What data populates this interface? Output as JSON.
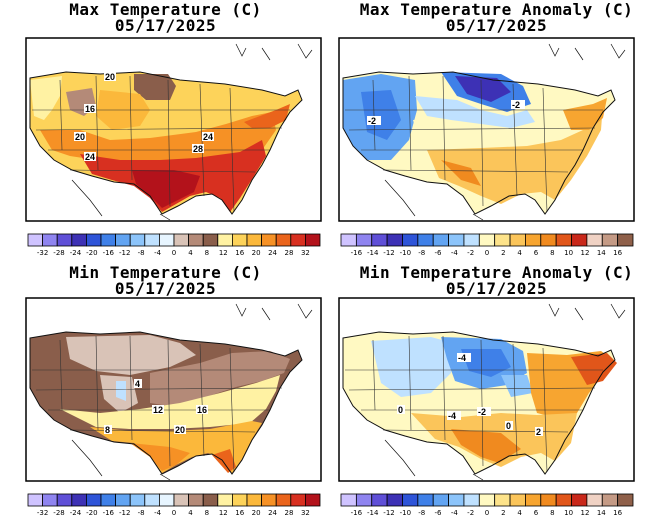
{
  "panels": [
    {
      "id": "max",
      "title": "Max Temperature (C)",
      "date": "05/17/2025",
      "scale": [
        "-32",
        "-28",
        "-24",
        "-20",
        "-16",
        "-12",
        "-8",
        "-4",
        "0",
        "4",
        "8",
        "12",
        "16",
        "20",
        "24",
        "28",
        "32"
      ],
      "contour_labels": [
        "20",
        "16",
        "20",
        "24",
        "24",
        "28"
      ],
      "colors": [
        "#cfc3ff",
        "#8f84f0",
        "#5f4fd7",
        "#3d31b5",
        "#2e54d8",
        "#3f80e8",
        "#62a4f2",
        "#8cc4fa",
        "#bfe1ff",
        "#e7f5ff",
        "#d9c3b7",
        "#b48a78",
        "#8a5e4b",
        "#fff2a3",
        "#fdd35a",
        "#fbb83b",
        "#f69125",
        "#ea641b",
        "#d83020",
        "#b3121b"
      ]
    },
    {
      "id": "max_anom",
      "title": "Max Temperature Anomaly (C)",
      "date": "05/17/2025",
      "scale": [
        "-16",
        "-14",
        "-12",
        "-10",
        "-8",
        "-6",
        "-4",
        "-2",
        "0",
        "2",
        "4",
        "6",
        "8",
        "10",
        "12",
        "14",
        "16"
      ],
      "contour_labels": [
        "-2",
        "-2"
      ],
      "colors": [
        "#cfc3ff",
        "#8f84f0",
        "#5f4fd7",
        "#3d31b5",
        "#2e54d8",
        "#3f80e8",
        "#62a4f2",
        "#8cc4fa",
        "#bfe1ff",
        "#fff9c2",
        "#fde38a",
        "#fbc55a",
        "#f7a530",
        "#f08a1f",
        "#e1561a",
        "#c9281a",
        "#f0d2c4",
        "#c49a85",
        "#8f604a"
      ]
    },
    {
      "id": "min",
      "title": "Min Temperature (C)",
      "date": "05/17/2025",
      "scale": [
        "-32",
        "-28",
        "-24",
        "-20",
        "-16",
        "-12",
        "-8",
        "-4",
        "0",
        "4",
        "8",
        "12",
        "16",
        "20",
        "24",
        "28",
        "32"
      ],
      "contour_labels": [
        "4",
        "12",
        "16",
        "20",
        "8"
      ],
      "colors": [
        "#cfc3ff",
        "#8f84f0",
        "#5f4fd7",
        "#3d31b5",
        "#2e54d8",
        "#3f80e8",
        "#62a4f2",
        "#8cc4fa",
        "#bfe1ff",
        "#e7f5ff",
        "#d9c3b7",
        "#b48a78",
        "#8a5e4b",
        "#fff2a3",
        "#fdd35a",
        "#fbb83b",
        "#f69125",
        "#ea641b",
        "#d83020",
        "#b3121b"
      ]
    },
    {
      "id": "min_anom",
      "title": "Min Temperature Anomaly (C)",
      "date": "05/17/2025",
      "scale": [
        "-16",
        "-14",
        "-12",
        "-10",
        "-8",
        "-6",
        "-4",
        "-2",
        "0",
        "2",
        "4",
        "6",
        "8",
        "10",
        "12",
        "14",
        "16"
      ],
      "contour_labels": [
        "-4",
        "0",
        "-2",
        "-4",
        "0",
        "2"
      ],
      "colors": [
        "#cfc3ff",
        "#8f84f0",
        "#5f4fd7",
        "#3d31b5",
        "#2e54d8",
        "#3f80e8",
        "#62a4f2",
        "#8cc4fa",
        "#bfe1ff",
        "#fff9c2",
        "#fde38a",
        "#fbc55a",
        "#f7a530",
        "#f08a1f",
        "#e1561a",
        "#c9281a",
        "#f0d2c4",
        "#c49a85",
        "#8f604a"
      ]
    }
  ]
}
